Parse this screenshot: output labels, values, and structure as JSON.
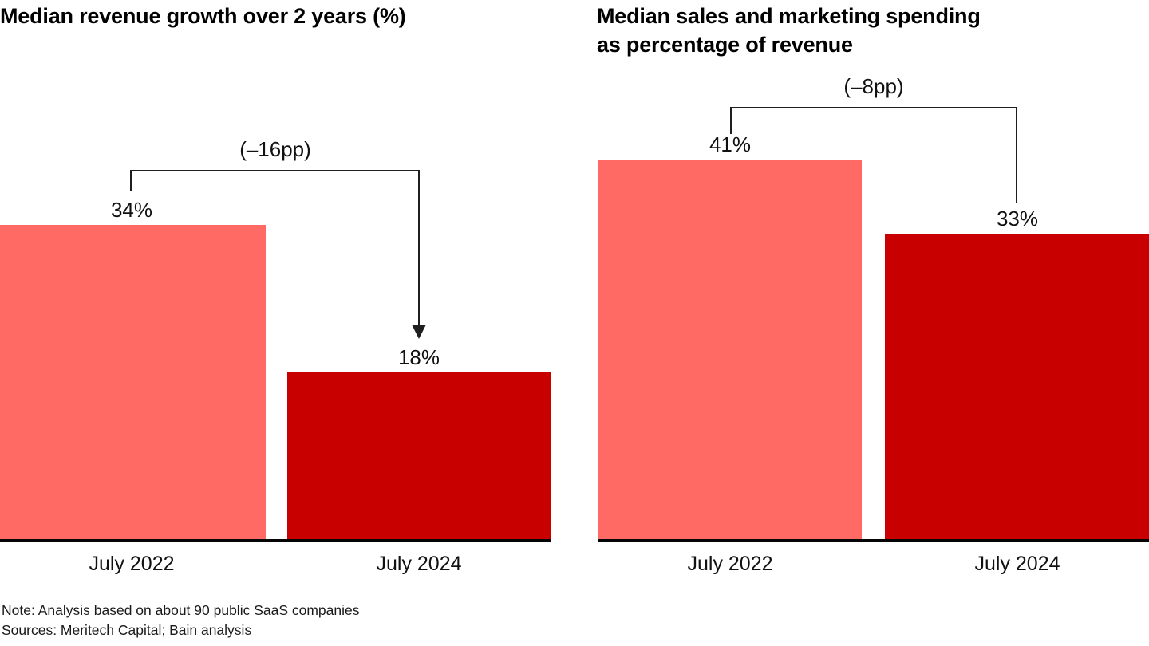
{
  "colors": {
    "bar_2022": "#ff6a64",
    "bar_2024": "#c80000",
    "annotation_line": "#1f1f1f",
    "axis_line": "#050505",
    "text": "#000000",
    "background": "#ffffff"
  },
  "chart_data": [
    {
      "type": "bar",
      "title": "Median revenue growth over 2 years (%)",
      "categories": [
        "July 2022",
        "July 2024"
      ],
      "values": [
        34,
        18
      ],
      "value_labels": [
        "34%",
        "18%"
      ],
      "bar_colors": [
        "#ff6a64",
        "#c80000"
      ],
      "delta_label": "(–16pp)",
      "delta_pp": -16,
      "unit": "%",
      "xlabel": "",
      "ylabel": "",
      "ylim": [
        0,
        45
      ],
      "grid": false,
      "legend": "none",
      "annotation_style": "bracket-with-arrow"
    },
    {
      "type": "bar",
      "title": "Median sales and marketing spending as percentage of revenue",
      "title_lines": [
        "Median sales and marketing spending",
        "as percentage of revenue"
      ],
      "categories": [
        "July 2022",
        "July 2024"
      ],
      "values": [
        41,
        33
      ],
      "value_labels": [
        "41%",
        "33%"
      ],
      "bar_colors": [
        "#ff6a64",
        "#c80000"
      ],
      "delta_label": "(–8pp)",
      "delta_pp": -8,
      "unit": "%",
      "xlabel": "",
      "ylabel": "",
      "ylim": [
        0,
        45
      ],
      "grid": false,
      "legend": "none",
      "annotation_style": "bracket"
    }
  ],
  "footnotes": {
    "note": "Note: Analysis based on about 90 public SaaS companies",
    "sources": "Sources: Meritech Capital; Bain analysis"
  }
}
